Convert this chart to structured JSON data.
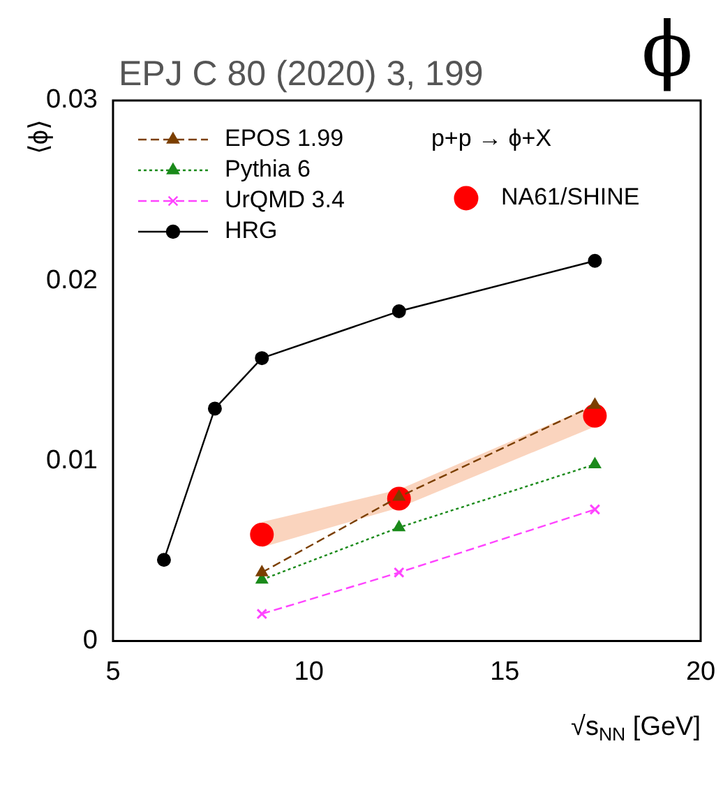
{
  "chart_data": {
    "type": "line",
    "xlabel": "√s$_{NN}$ [GeV]",
    "ylabel": "⟨ϕ⟩",
    "annotations": [
      "EPJ C 80 (2020) 3, 199",
      "p+p → ϕ+X",
      "ϕ"
    ],
    "xlim": [
      5,
      20
    ],
    "xticks": [
      5,
      10,
      15,
      20
    ],
    "ylim": [
      0,
      0.03
    ],
    "yticks": [
      0,
      0.01,
      0.02,
      0.03
    ],
    "grid": false,
    "legend": "top left",
    "series": [
      {
        "name": "EPOS 1.99",
        "color": "#7b3f00",
        "marker": "triangle",
        "line_style": "dashed",
        "x": [
          8.8,
          12.3,
          17.3
        ],
        "values": [
          0.0038,
          0.008,
          0.0131
        ]
      },
      {
        "name": "Pythia 6",
        "color": "#1a8a1a",
        "marker": "triangle",
        "line_style": "dotted",
        "x": [
          8.8,
          12.3,
          17.3
        ],
        "values": [
          0.0034,
          0.0063,
          0.0098
        ]
      },
      {
        "name": "UrQMD 3.4",
        "color": "#ff44ff",
        "marker": "cross",
        "line_style": "dashed",
        "x": [
          8.8,
          12.3,
          17.3
        ],
        "values": [
          0.0015,
          0.0038,
          0.0073
        ]
      },
      {
        "name": "HRG",
        "color": "#000000",
        "marker": "circle",
        "line_style": "solid",
        "x": [
          6.3,
          7.6,
          8.8,
          12.3,
          17.3
        ],
        "values": [
          0.0045,
          0.0129,
          0.0157,
          0.0183,
          0.0211
        ]
      },
      {
        "name": "NA61/SHINE",
        "type": "scatter",
        "color": "#ff0000",
        "marker": "circle",
        "x": [
          8.8,
          12.3,
          17.3
        ],
        "values": [
          0.0059,
          0.0079,
          0.0125
        ],
        "lower": [
          0.0052,
          0.0074,
          0.0119
        ],
        "upper": [
          0.0066,
          0.0084,
          0.0131
        ]
      }
    ]
  }
}
